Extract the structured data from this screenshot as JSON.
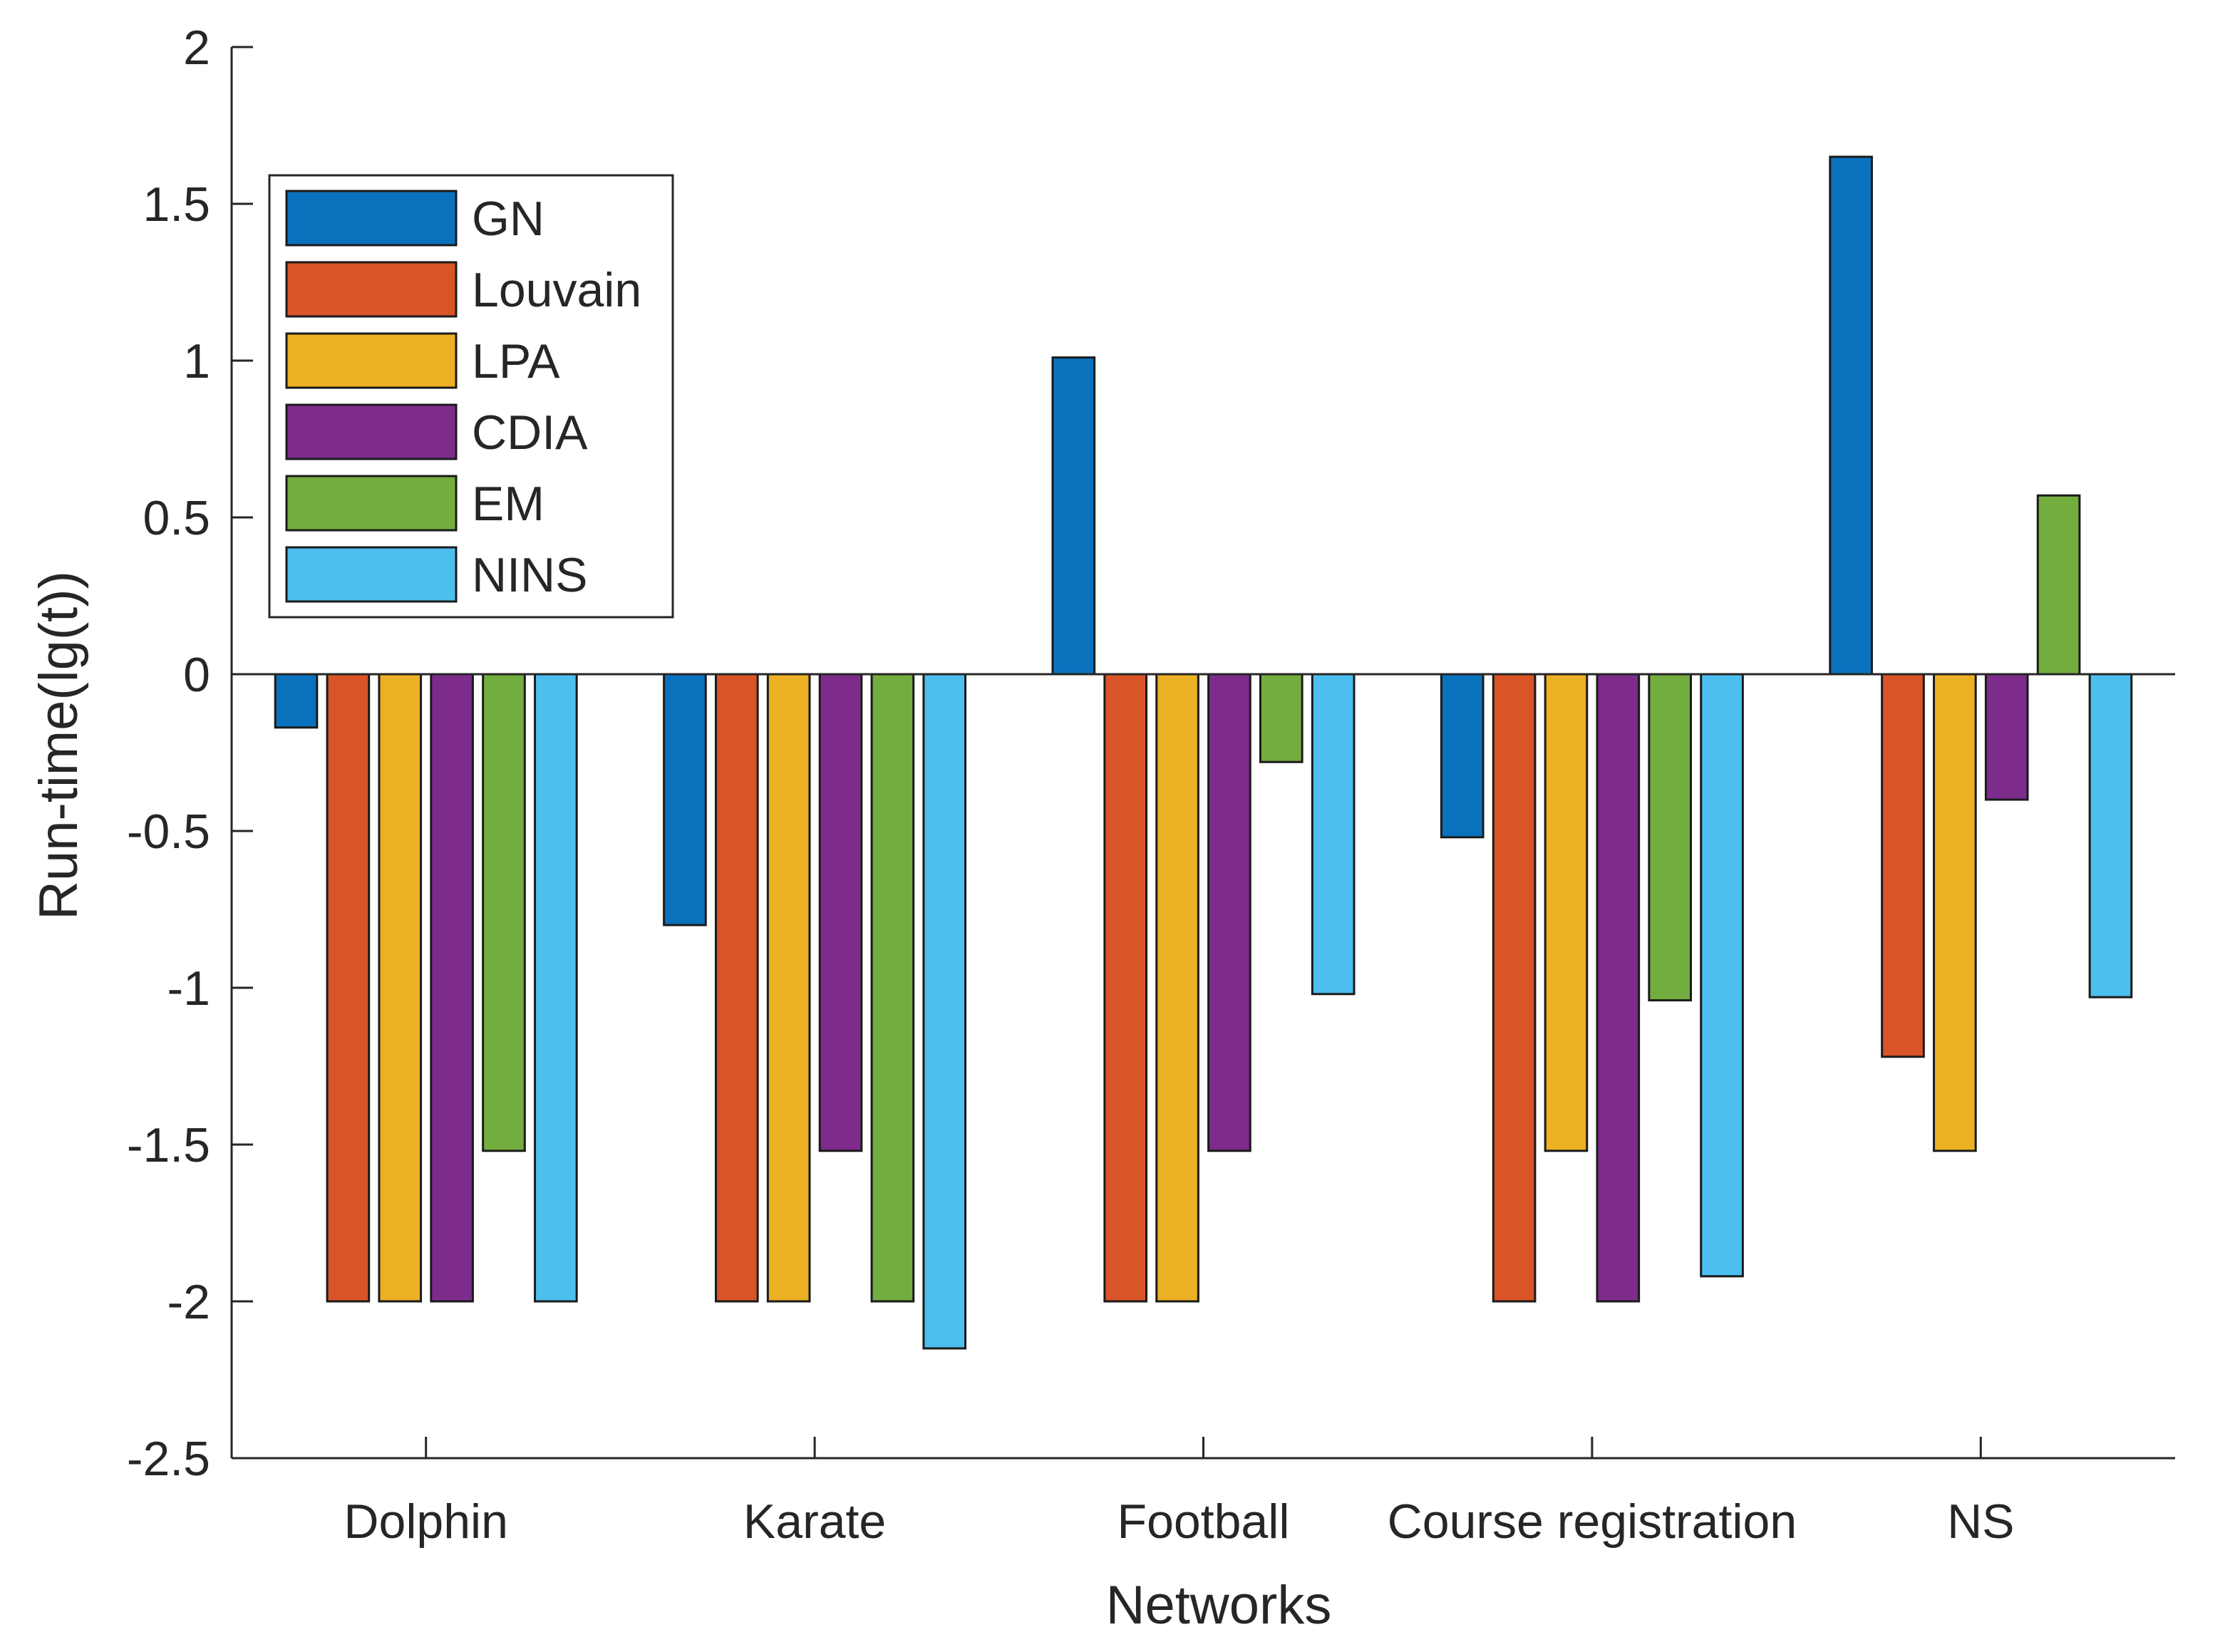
{
  "chart_data": {
    "type": "bar",
    "title": "",
    "xlabel": "Networks",
    "ylabel": "Run-time(lg(t))",
    "ylim": [
      -2.5,
      2
    ],
    "yticks": [
      2,
      1.5,
      1,
      0.5,
      0,
      -0.5,
      -1,
      -1.5,
      -2,
      -2.5
    ],
    "ytick_labels": [
      "2",
      "1.5",
      "1",
      "0.5",
      "0",
      "-0.5",
      "-1",
      "-1.5",
      "-2",
      "-2.5"
    ],
    "categories": [
      "Dolphin",
      "Karate",
      "Football",
      "Course registration",
      "NS"
    ],
    "legend_position": "top-left",
    "grid": false,
    "series": [
      {
        "name": "GN",
        "color": "#0a72bd",
        "values": [
          -0.17,
          -0.8,
          1.01,
          -0.52,
          1.65
        ]
      },
      {
        "name": "Louvain",
        "color": "#d95427",
        "values": [
          -2.0,
          -2.0,
          -2.0,
          -2.0,
          -1.22
        ]
      },
      {
        "name": "LPA",
        "color": "#ebb023",
        "values": [
          -2.0,
          -2.0,
          -2.0,
          -1.52,
          -1.52
        ]
      },
      {
        "name": "CDIA",
        "color": "#7d2c8c",
        "values": [
          -2.0,
          -1.52,
          -1.52,
          -2.0,
          -0.4
        ]
      },
      {
        "name": "EM",
        "color": "#74ad3f",
        "values": [
          -1.52,
          -2.0,
          -0.28,
          -1.04,
          0.57
        ]
      },
      {
        "name": "NINS",
        "color": "#4cbfee",
        "values": [
          -2.0,
          -2.15,
          -1.02,
          -1.92,
          -1.03
        ]
      }
    ]
  }
}
